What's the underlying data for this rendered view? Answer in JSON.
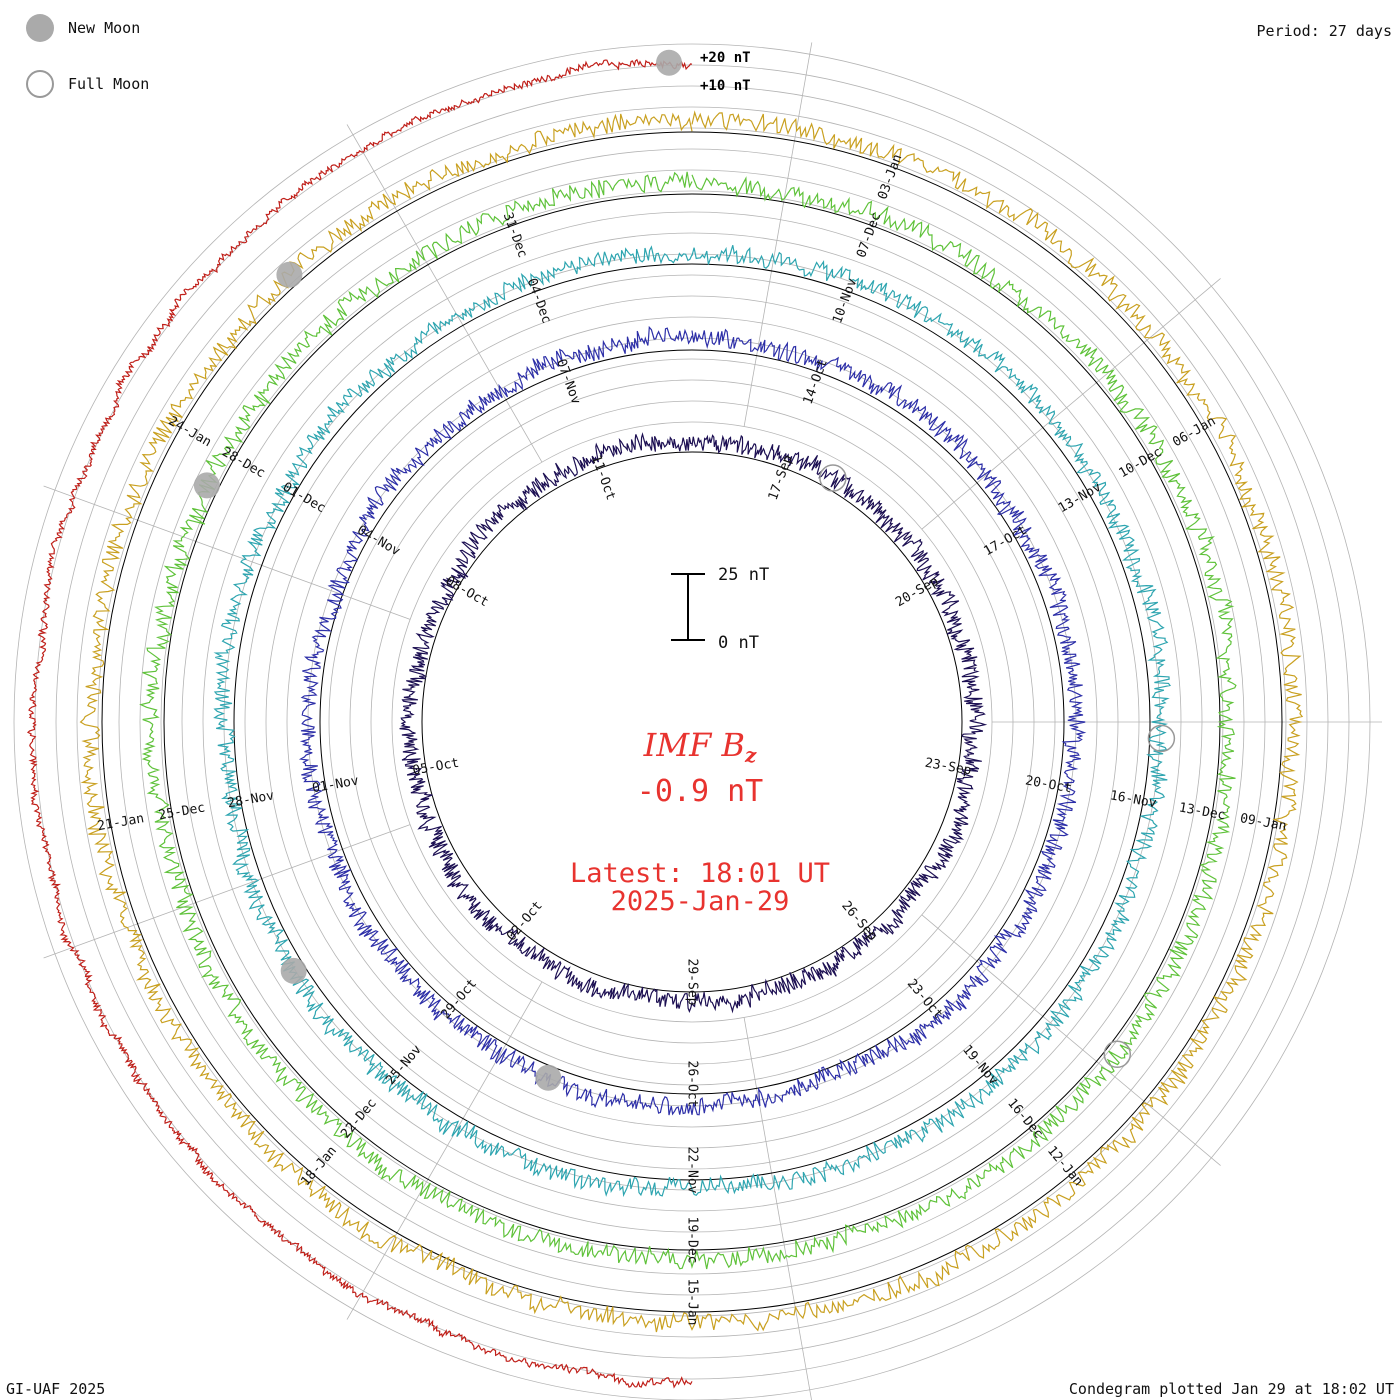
{
  "legend": {
    "new_moon_label": "New Moon",
    "full_moon_label": "Full Moon"
  },
  "header": {
    "period_label": "Period: 27 days"
  },
  "footer": {
    "credit": "GI-UAF 2025",
    "plotted": "Condegram plotted Jan 29 at 18:02 UT"
  },
  "center": {
    "parameter": "IMF B",
    "parameter_sub": "z",
    "current_value": "-0.9 nT",
    "latest_label": "Latest: 18:01 UT",
    "latest_date": "2025-Jan-29"
  },
  "colors": {
    "text_accent": "#e8332f",
    "grid": "#b4b4b4",
    "moon_fill": "#aaaaaa"
  },
  "chart_data": {
    "type": "condegram",
    "title": "IMF Bz",
    "units": "nT",
    "period_days": 27,
    "scale_bar": {
      "low_label": "0 nT",
      "high_label": "25 nT",
      "low": 0,
      "high": 25
    },
    "reference_ring_labels": [
      "+10 nT",
      "+20 nT"
    ],
    "reference_levels": [
      10,
      20
    ],
    "latest_value": -0.9,
    "cycles": [
      {
        "index": 0,
        "color": "#1c0f52",
        "date_labels": [
          {
            "text": "17-Sep",
            "angle": 20
          },
          {
            "text": "20-Sep",
            "angle": 60
          },
          {
            "text": "23-Sep",
            "angle": 100
          },
          {
            "text": "26-Sep",
            "angle": 140
          },
          {
            "text": "29-Sep",
            "angle": 180
          },
          {
            "text": "02-Oct",
            "angle": 220
          },
          {
            "text": "05-Oct",
            "angle": 260
          },
          {
            "text": "08-Oct",
            "angle": 300
          },
          {
            "text": "11-Oct",
            "angle": 340
          }
        ]
      },
      {
        "index": 1,
        "color": "#2d2fa8",
        "date_labels": [
          {
            "text": "14-Oct",
            "angle": 20
          },
          {
            "text": "17-Oct",
            "angle": 60
          },
          {
            "text": "20-Oct",
            "angle": 100
          },
          {
            "text": "23-Oct",
            "angle": 140
          },
          {
            "text": "26-Oct",
            "angle": 180
          },
          {
            "text": "29-Oct",
            "angle": 220
          },
          {
            "text": "01-Nov",
            "angle": 260
          },
          {
            "text": "04-Nov",
            "angle": 300
          },
          {
            "text": "07-Nov",
            "angle": 340
          }
        ]
      },
      {
        "index": 2,
        "color": "#2ea5b0",
        "date_labels": [
          {
            "text": "10-Nov",
            "angle": 20
          },
          {
            "text": "13-Nov",
            "angle": 60
          },
          {
            "text": "16-Nov",
            "angle": 100
          },
          {
            "text": "19-Nov",
            "angle": 140
          },
          {
            "text": "22-Nov",
            "angle": 180
          },
          {
            "text": "25-Nov",
            "angle": 220
          },
          {
            "text": "28-Nov",
            "angle": 260
          },
          {
            "text": "01-Dec",
            "angle": 300
          },
          {
            "text": "04-Dec",
            "angle": 340
          }
        ]
      },
      {
        "index": 3,
        "color": "#5fc23a",
        "date_labels": [
          {
            "text": "07-Dec",
            "angle": 20
          },
          {
            "text": "10-Dec",
            "angle": 60
          },
          {
            "text": "13-Dec",
            "angle": 100
          },
          {
            "text": "16-Dec",
            "angle": 140
          },
          {
            "text": "19-Dec",
            "angle": 180
          },
          {
            "text": "22-Dec",
            "angle": 220
          },
          {
            "text": "25-Dec",
            "angle": 260
          },
          {
            "text": "28-Dec",
            "angle": 300
          },
          {
            "text": "31-Dec",
            "angle": 340
          }
        ]
      },
      {
        "index": 4,
        "color": "#c9a020",
        "date_labels": [
          {
            "text": "03-Jan",
            "angle": 20
          },
          {
            "text": "06-Jan",
            "angle": 60
          },
          {
            "text": "09-Jan",
            "angle": 100
          },
          {
            "text": "12-Jan",
            "angle": 140
          },
          {
            "text": "15-Jan",
            "angle": 180
          },
          {
            "text": "18-Jan",
            "angle": 220
          },
          {
            "text": "21-Jan",
            "angle": 260
          },
          {
            "text": "24-Jan",
            "angle": 300
          }
        ]
      },
      {
        "index": 5,
        "color": "#c0201a",
        "date_labels": []
      }
    ],
    "moon_markers": [
      {
        "phase": "new",
        "cycle": 5,
        "angle": 358
      },
      {
        "phase": "new",
        "cycle": 4,
        "angle": 318
      },
      {
        "phase": "new",
        "cycle": 3,
        "angle": 296
      },
      {
        "phase": "new",
        "cycle": 2,
        "angle": 238
      },
      {
        "phase": "new",
        "cycle": 1,
        "angle": 202
      },
      {
        "phase": "full",
        "cycle": 2,
        "angle": 92
      },
      {
        "phase": "full",
        "cycle": 3,
        "angle": 128
      },
      {
        "phase": "full",
        "cycle": 0,
        "angle": 30
      }
    ]
  }
}
